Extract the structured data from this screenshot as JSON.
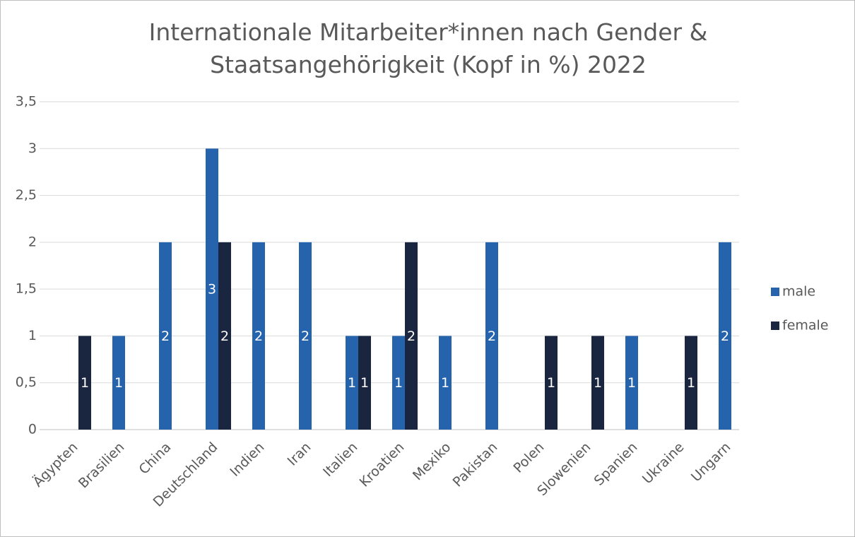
{
  "chart_data": {
    "type": "bar",
    "title": "Internationale Mitarbeiter*innen nach Gender & Staatsangehörigkeit (Kopf in %) 2022",
    "categories": [
      "Ägypten",
      "Brasilien",
      "China",
      "Deutschland",
      "Indien",
      "Iran",
      "Italien",
      "Kroatien",
      "Mexiko",
      "Pakistan",
      "Polen",
      "Slowenien",
      "Spanien",
      "Ukraine",
      "Ungarn"
    ],
    "series": [
      {
        "name": "male",
        "color": "#2563ad",
        "values": [
          null,
          1,
          2,
          3,
          2,
          2,
          1,
          1,
          1,
          2,
          null,
          null,
          1,
          null,
          2
        ]
      },
      {
        "name": "female",
        "color": "#1a2540",
        "values": [
          1,
          null,
          null,
          2,
          null,
          null,
          1,
          2,
          null,
          null,
          1,
          1,
          null,
          1,
          null
        ]
      }
    ],
    "ylim": [
      0,
      3.5
    ],
    "yticks": [
      0,
      {
        "value": 0.5,
        "label": "0,5"
      },
      1,
      {
        "value": 1.5,
        "label": "1,5"
      },
      2,
      {
        "value": 2.5,
        "label": "2,5"
      },
      3,
      {
        "value": 3.5,
        "label": "3,5"
      }
    ],
    "grid": true,
    "legend": "right"
  }
}
